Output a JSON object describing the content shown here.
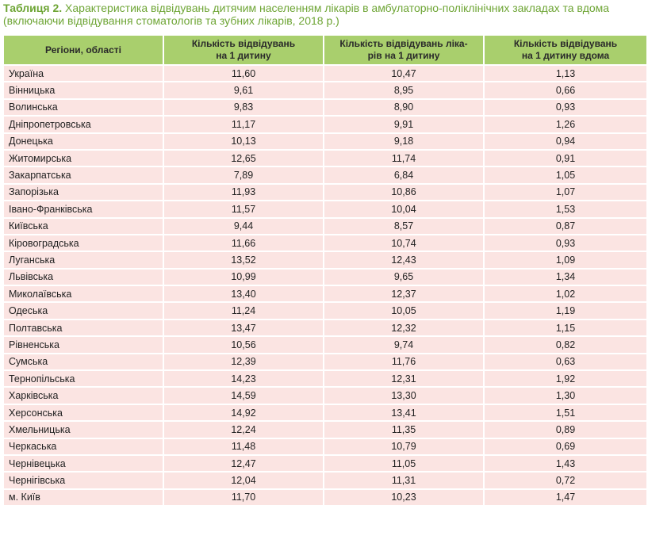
{
  "caption": {
    "label": "Таблиця 2.",
    "text": "Характеристика відвідувань дитячим населенням лікарів в амбулаторно-поліклінічних закладах та вдома (включаючи відвідування стоматологів та зубних лікарів, 2018 р.)"
  },
  "table": {
    "headers": [
      "Регіони, області",
      "Кількість відвідувань\nна 1 дитину",
      "Кількість відвідувань ліка-\nрів на 1 дитину",
      "Кількість відвідувань\nна 1 дитину вдома"
    ],
    "rows": [
      [
        "Україна",
        "11,60",
        "10,47",
        "1,13"
      ],
      [
        "Вінницька",
        "9,61",
        "8,95",
        "0,66"
      ],
      [
        "Волинська",
        "9,83",
        "8,90",
        "0,93"
      ],
      [
        "Дніпропетровська",
        "11,17",
        "9,91",
        "1,26"
      ],
      [
        "Донецька",
        "10,13",
        "9,18",
        "0,94"
      ],
      [
        "Житомирська",
        "12,65",
        "11,74",
        "0,91"
      ],
      [
        "Закарпатська",
        "7,89",
        "6,84",
        "1,05"
      ],
      [
        "Запорізька",
        "11,93",
        "10,86",
        "1,07"
      ],
      [
        "Івано-Франківська",
        "11,57",
        "10,04",
        "1,53"
      ],
      [
        "Київська",
        "9,44",
        "8,57",
        "0,87"
      ],
      [
        "Кіровоградська",
        "11,66",
        "10,74",
        "0,93"
      ],
      [
        "Луганська",
        "13,52",
        "12,43",
        "1,09"
      ],
      [
        "Львівська",
        "10,99",
        "9,65",
        "1,34"
      ],
      [
        "Миколаївська",
        "13,40",
        "12,37",
        "1,02"
      ],
      [
        "Одеська",
        "11,24",
        "10,05",
        "1,19"
      ],
      [
        "Полтавська",
        "13,47",
        "12,32",
        "1,15"
      ],
      [
        "Рівненська",
        "10,56",
        "9,74",
        "0,82"
      ],
      [
        "Сумська",
        "12,39",
        "11,76",
        "0,63"
      ],
      [
        "Тернопільська",
        "14,23",
        "12,31",
        "1,92"
      ],
      [
        "Харківська",
        "14,59",
        "13,30",
        "1,30"
      ],
      [
        "Херсонська",
        "14,92",
        "13,41",
        "1,51"
      ],
      [
        "Хмельницька",
        "12,24",
        "11,35",
        "0,89"
      ],
      [
        "Черкаська",
        "11,48",
        "10,79",
        "0,69"
      ],
      [
        "Чернівецька",
        "12,47",
        "11,05",
        "1,43"
      ],
      [
        "Чернігівська",
        "12,04",
        "11,31",
        "0,72"
      ],
      [
        "м. Київ",
        "11,70",
        "10,23",
        "1,47"
      ]
    ]
  },
  "colors": {
    "caption_text": "#6ea535",
    "header_bg": "#a9cf6d",
    "cell_bg": "#fbe4e2"
  }
}
